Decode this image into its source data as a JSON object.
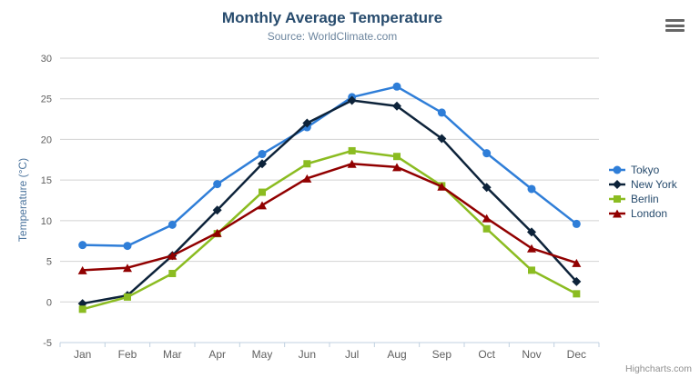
{
  "header": {
    "title": "Monthly Average Temperature",
    "subtitle": "Source: WorldClimate.com"
  },
  "menu": {
    "icon": "hamburger-icon"
  },
  "credit": "Highcharts.com",
  "chart_data": {
    "type": "line",
    "title": "Monthly Average Temperature",
    "subtitle": "Source: WorldClimate.com",
    "categories": [
      "Jan",
      "Feb",
      "Mar",
      "Apr",
      "May",
      "Jun",
      "Jul",
      "Aug",
      "Sep",
      "Oct",
      "Nov",
      "Dec"
    ],
    "series": [
      {
        "name": "Tokyo",
        "color": "#2f7ed8",
        "marker": "circle",
        "values": [
          7.0,
          6.9,
          9.5,
          14.5,
          18.2,
          21.5,
          25.2,
          26.5,
          23.3,
          18.3,
          13.9,
          9.6
        ]
      },
      {
        "name": "New York",
        "color": "#0d233a",
        "marker": "diamond",
        "values": [
          -0.2,
          0.8,
          5.7,
          11.3,
          17.0,
          22.0,
          24.8,
          24.1,
          20.1,
          14.1,
          8.6,
          2.5
        ]
      },
      {
        "name": "Berlin",
        "color": "#8bbc21",
        "marker": "square",
        "values": [
          -0.9,
          0.6,
          3.5,
          8.4,
          13.5,
          17.0,
          18.6,
          17.9,
          14.3,
          9.0,
          3.9,
          1.0
        ]
      },
      {
        "name": "London",
        "color": "#910000",
        "marker": "triangle",
        "values": [
          3.9,
          4.2,
          5.7,
          8.5,
          11.9,
          15.2,
          17.0,
          16.6,
          14.2,
          10.3,
          6.6,
          4.8
        ]
      }
    ],
    "xlabel": "",
    "ylabel": "Temperature (°C)",
    "ylim": [
      -5,
      30
    ],
    "yticks": [
      -5,
      0,
      5,
      10,
      15,
      20,
      25,
      30
    ],
    "grid": true,
    "legend_position": "right"
  },
  "colors": {
    "grid": "#d2d2d2",
    "axis_line": "#c0d0e0",
    "tick": "#c0d0e0",
    "axis_label": "#606060",
    "title": "#274b6d",
    "subtitle": "#6d869f",
    "axis_title": "#4d759e",
    "legend_text": "#274b6d",
    "credit": "#909090",
    "menu_icon": "#666666",
    "background": "#ffffff"
  }
}
